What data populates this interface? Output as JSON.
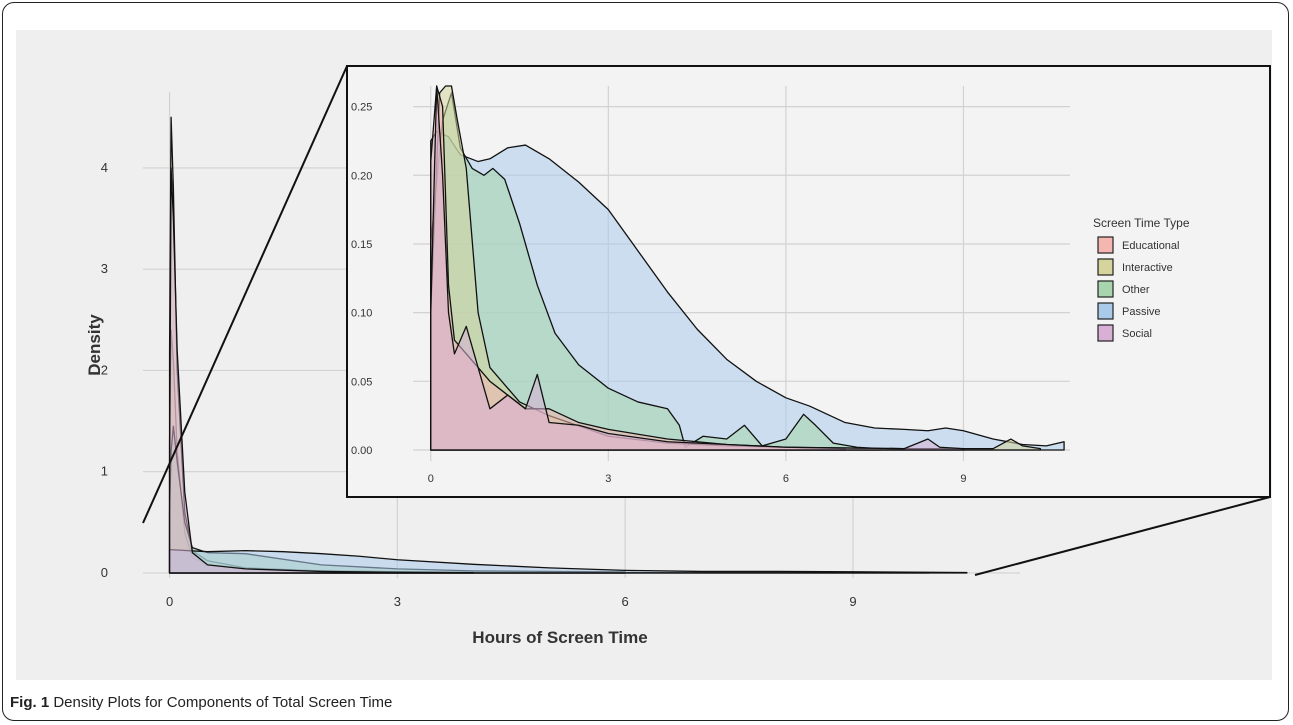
{
  "caption": {
    "label": "Fig. 1",
    "text": "Density Plots for Components of Total Screen Time"
  },
  "colors": {
    "Educational": "#f4b6b0",
    "Interactive": "#d4d49c",
    "Other": "#a8d5ad",
    "Passive": "#a9cbe9",
    "Social": "#d8b0d6",
    "panel_bg": "#efefef",
    "inset_bg": "#f3f3f3",
    "grid": "#d2d2d2"
  },
  "chart_data": [
    {
      "type": "area",
      "xlabel": "Hours of Screen Time",
      "ylabel": "Density",
      "xlim": [
        -0.35,
        11.2
      ],
      "ylim": [
        -0.05,
        4.75
      ],
      "xticks": [
        0,
        3,
        6,
        9
      ],
      "xtick_labels": [
        "0",
        "3",
        "6",
        "9"
      ],
      "yticks": [
        0,
        1,
        2,
        3,
        4
      ],
      "ytick_labels": [
        "0",
        "1",
        "2",
        "3",
        "4"
      ],
      "grid": true,
      "series": [
        {
          "name": "Educational",
          "x": [
            0,
            0.02,
            0.05,
            0.1,
            0.2,
            0.3,
            0.5,
            1,
            2,
            3,
            4,
            6
          ],
          "y": [
            1.3,
            2.4,
            2.1,
            1.2,
            0.4,
            0.15,
            0.08,
            0.04,
            0.02,
            0.01,
            0.003,
            0.001
          ]
        },
        {
          "name": "Interactive",
          "x": [
            0,
            0.02,
            0.05,
            0.1,
            0.2,
            0.3,
            0.5,
            1,
            2,
            4,
            6,
            10
          ],
          "y": [
            2.2,
            4.5,
            3.8,
            2.0,
            0.6,
            0.22,
            0.12,
            0.05,
            0.02,
            0.005,
            0.003,
            0.002
          ]
        },
        {
          "name": "Other",
          "x": [
            0,
            0.02,
            0.05,
            0.1,
            0.2,
            0.3,
            0.5,
            1,
            2,
            3,
            4,
            6
          ],
          "y": [
            0.6,
            1.2,
            1.45,
            1.1,
            0.5,
            0.25,
            0.2,
            0.19,
            0.08,
            0.04,
            0.02,
            0.01
          ]
        },
        {
          "name": "Passive",
          "x": [
            0,
            0.5,
            1,
            1.5,
            2,
            2.5,
            3,
            4,
            5,
            6,
            7,
            8,
            9,
            10.5
          ],
          "y": [
            0.23,
            0.21,
            0.22,
            0.21,
            0.19,
            0.165,
            0.13,
            0.085,
            0.05,
            0.025,
            0.015,
            0.015,
            0.012,
            0.004
          ]
        },
        {
          "name": "Social",
          "x": [
            0,
            0.02,
            0.05,
            0.1,
            0.2,
            0.3,
            0.5,
            1,
            2,
            3,
            4
          ],
          "y": [
            1.0,
            4.0,
            3.5,
            2.2,
            0.8,
            0.2,
            0.08,
            0.04,
            0.015,
            0.006,
            0.003
          ]
        }
      ]
    },
    {
      "type": "area",
      "xlim": [
        -0.3,
        10.8
      ],
      "ylim": [
        -0.008,
        0.265
      ],
      "xticks": [
        0,
        3,
        6,
        9
      ],
      "xtick_labels": [
        "0",
        "3",
        "6",
        "9"
      ],
      "yticks": [
        0,
        0.05,
        0.1,
        0.15,
        0.2,
        0.25
      ],
      "ytick_labels": [
        "0.00",
        "0.05",
        "0.10",
        "0.15",
        "0.20",
        "0.25"
      ],
      "grid": true,
      "legend_title": "Screen Time Type",
      "legend_position": "right",
      "legend": [
        "Educational",
        "Interactive",
        "Other",
        "Passive",
        "Social"
      ],
      "series": [
        {
          "name": "Passive",
          "x": [
            0,
            0.1,
            0.3,
            0.5,
            0.8,
            1.0,
            1.3,
            1.6,
            2.0,
            2.5,
            3.0,
            3.5,
            4.0,
            4.5,
            5.0,
            5.5,
            6.0,
            6.4,
            7.0,
            7.5,
            8.0,
            8.4,
            8.7,
            9.0,
            9.5,
            10.0,
            10.4,
            10.7
          ],
          "y": [
            0.225,
            0.232,
            0.228,
            0.215,
            0.21,
            0.212,
            0.22,
            0.222,
            0.212,
            0.195,
            0.175,
            0.145,
            0.115,
            0.088,
            0.066,
            0.05,
            0.038,
            0.032,
            0.02,
            0.016,
            0.015,
            0.014,
            0.016,
            0.014,
            0.008,
            0.004,
            0.003,
            0.006
          ]
        },
        {
          "name": "Other",
          "x": [
            0,
            0.2,
            0.35,
            0.5,
            0.7,
            0.9,
            1.05,
            1.25,
            1.5,
            1.8,
            2.1,
            2.5,
            3.0,
            3.5,
            4.0,
            4.2,
            4.3,
            4.6,
            5.0,
            5.3,
            5.6,
            6.0,
            6.3,
            6.5,
            6.8,
            7.2,
            7.6
          ],
          "y": [
            0.15,
            0.24,
            0.26,
            0.22,
            0.205,
            0.2,
            0.205,
            0.197,
            0.165,
            0.12,
            0.085,
            0.062,
            0.045,
            0.035,
            0.03,
            0.018,
            0.002,
            0.01,
            0.008,
            0.018,
            0.003,
            0.008,
            0.026,
            0.018,
            0.005,
            0.002,
            0.001
          ]
        },
        {
          "name": "Interactive",
          "x": [
            0,
            0.15,
            0.25,
            0.35,
            0.45,
            0.6,
            0.8,
            1.0,
            1.5,
            2.0,
            3.0,
            4.0,
            5.0,
            6.0,
            8.0,
            9.5,
            9.8,
            10.0,
            10.3
          ],
          "y": [
            0.1,
            0.26,
            0.3,
            0.28,
            0.24,
            0.205,
            0.1,
            0.06,
            0.035,
            0.025,
            0.01,
            0.005,
            0.003,
            0.002,
            0.001,
            0.001,
            0.008,
            0.003,
            0.001
          ]
        },
        {
          "name": "Educational",
          "x": [
            0,
            0.1,
            0.2,
            0.3,
            0.4,
            0.6,
            0.8,
            1.0,
            1.3,
            1.6,
            2.0,
            2.5,
            3.0,
            4.0,
            5.0,
            6.0,
            7.0
          ],
          "y": [
            0.21,
            0.3,
            0.25,
            0.12,
            0.08,
            0.07,
            0.06,
            0.05,
            0.04,
            0.03,
            0.03,
            0.02,
            0.015,
            0.008,
            0.004,
            0.002,
            0.001
          ]
        },
        {
          "name": "Social",
          "x": [
            0,
            0.1,
            0.2,
            0.3,
            0.4,
            0.6,
            0.8,
            1.0,
            1.3,
            1.6,
            1.8,
            2.0,
            2.5,
            3.0,
            4.0,
            5.0,
            6.0,
            8.0,
            8.4,
            8.6,
            9.0
          ],
          "y": [
            0.1,
            0.28,
            0.2,
            0.1,
            0.07,
            0.09,
            0.06,
            0.03,
            0.04,
            0.03,
            0.055,
            0.02,
            0.018,
            0.012,
            0.006,
            0.004,
            0.002,
            0.001,
            0.008,
            0.002,
            0.001
          ]
        }
      ]
    }
  ]
}
